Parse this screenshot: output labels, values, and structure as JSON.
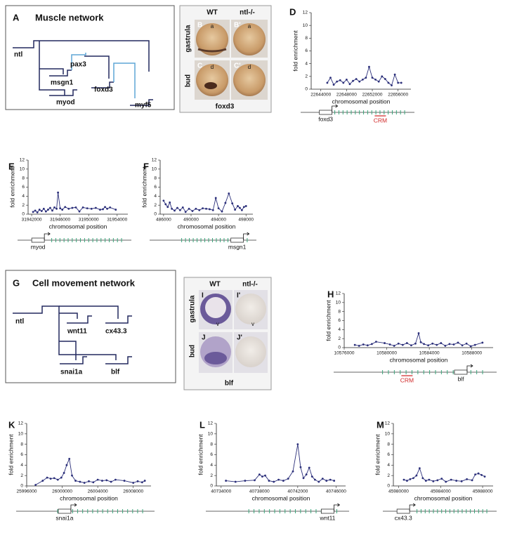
{
  "panel_a": {
    "label": "A",
    "title": "Muscle network",
    "nodes": [
      "ntl",
      "msgn1",
      "pax3",
      "foxd3",
      "myod",
      "myf5"
    ]
  },
  "panel_bc": {
    "columns": [
      "WT",
      "ntl-/-"
    ],
    "rows": [
      "gastrula",
      "bud"
    ],
    "panels": [
      "B",
      "B'",
      "C",
      "C'"
    ],
    "annotations": [
      "a",
      "a",
      "d",
      "d"
    ],
    "gene": "foxd3"
  },
  "panel_g": {
    "label": "G",
    "title": "Cell movement network",
    "nodes": [
      "ntl",
      "wnt11",
      "cx43.3",
      "snai1a",
      "blf"
    ]
  },
  "panel_ij": {
    "columns": [
      "WT",
      "ntl-/-"
    ],
    "rows": [
      "gastrula",
      "bud"
    ],
    "panels": [
      "I",
      "I'",
      "J",
      "J'"
    ],
    "annotations": [
      "v",
      "v"
    ],
    "gene": "blf"
  },
  "chart_data": [
    {
      "type": "line",
      "panel_label": "D",
      "ylabel": "fold enrichment",
      "xlabel": "chromosomal position",
      "color": "#2b2f7a",
      "x": [
        22645000,
        22645500,
        22646000,
        22646500,
        22647000,
        22647500,
        22648000,
        22648500,
        22649000,
        22649500,
        22650000,
        22650500,
        22651000,
        22651500,
        22652000,
        22652500,
        22653000,
        22653500,
        22654000,
        22654500,
        22655000,
        22655500,
        22656000,
        22656500
      ],
      "values": [
        1.0,
        1.8,
        0.7,
        1.2,
        1.4,
        1.0,
        1.5,
        0.8,
        1.3,
        1.6,
        1.2,
        1.5,
        1.8,
        3.5,
        1.8,
        1.5,
        1.2,
        2.0,
        1.6,
        1.0,
        0.6,
        2.3,
        1.0,
        1.0
      ],
      "xlim": [
        22642500,
        22658000
      ],
      "ylim": [
        0,
        12
      ],
      "xticks": [
        22644000,
        22648000,
        22652000,
        22656000
      ],
      "yticks": [
        0,
        2,
        4,
        6,
        8,
        10,
        12
      ],
      "gene_label": "foxd3",
      "crm_label": "CRM"
    },
    {
      "type": "line",
      "panel_label": "E",
      "ylabel": "fold enrichment",
      "xlabel": "chromosomal position",
      "color": "#2b2f7a",
      "x": [
        31942200,
        31942500,
        31942800,
        31943100,
        31943400,
        31943700,
        31944000,
        31944300,
        31944600,
        31944900,
        31945200,
        31945500,
        31945700,
        31946000,
        31946300,
        31946700,
        31947200,
        31947700,
        31948200,
        31948700,
        31949200,
        31949800,
        31950400,
        31951000,
        31951600,
        31952000,
        31952300,
        31952600,
        31953000,
        31953800
      ],
      "values": [
        0.5,
        0.8,
        0.4,
        1.0,
        0.7,
        1.2,
        0.6,
        1.0,
        1.4,
        0.8,
        1.5,
        1.2,
        4.8,
        1.3,
        1.0,
        1.6,
        1.2,
        1.4,
        1.5,
        0.6,
        1.5,
        1.3,
        1.2,
        1.4,
        1.0,
        1.1,
        1.6,
        1.2,
        1.5,
        1.0
      ],
      "xlim": [
        31941500,
        31955500
      ],
      "ylim": [
        0,
        12
      ],
      "xticks": [
        31942000,
        31946000,
        31950000,
        31954000
      ],
      "yticks": [
        0,
        2,
        4,
        6,
        8,
        10,
        12
      ],
      "gene_label": "myod"
    },
    {
      "type": "line",
      "panel_label": "F",
      "ylabel": "fold enrichment",
      "xlabel": "chromosomal position",
      "color": "#2b2f7a",
      "x": [
        486000,
        486300,
        486600,
        486900,
        487200,
        487600,
        488000,
        488400,
        488800,
        489200,
        489700,
        490200,
        490700,
        491200,
        491700,
        492200,
        492700,
        493200,
        493600,
        494000,
        494500,
        495000,
        495500,
        496000,
        496400,
        496800,
        497100,
        497400,
        497700,
        498000
      ],
      "values": [
        3.0,
        2.2,
        1.6,
        2.6,
        1.2,
        0.8,
        1.4,
        0.9,
        1.5,
        0.5,
        1.2,
        0.7,
        1.2,
        0.9,
        1.3,
        1.2,
        1.1,
        0.9,
        3.6,
        1.3,
        0.6,
        2.5,
        4.6,
        2.4,
        1.0,
        1.8,
        1.4,
        0.9,
        1.6,
        1.8
      ],
      "xlim": [
        485500,
        499000
      ],
      "ylim": [
        0,
        12
      ],
      "xticks": [
        486000,
        490000,
        494000,
        498000
      ],
      "yticks": [
        0,
        2,
        4,
        6,
        8,
        10,
        12
      ],
      "gene_label": "msgn1"
    },
    {
      "type": "line",
      "panel_label": "H",
      "ylabel": "fold enrichment",
      "xlabel": "chromosomal position",
      "color": "#2b2f7a",
      "x": [
        10577000,
        10577400,
        10577800,
        10578200,
        10578600,
        10579000,
        10579800,
        10580300,
        10580700,
        10581100,
        10581500,
        10581900,
        10582300,
        10582700,
        10583000,
        10583200,
        10583500,
        10583900,
        10584300,
        10584700,
        10585100,
        10585500,
        10585900,
        10586300,
        10586700,
        10587100,
        10587500,
        10587900,
        10588300,
        10589000
      ],
      "values": [
        0.6,
        0.4,
        0.7,
        0.5,
        0.8,
        1.3,
        1.0,
        0.7,
        0.4,
        0.9,
        0.6,
        1.0,
        0.5,
        0.9,
        3.2,
        1.2,
        0.8,
        0.5,
        0.9,
        0.6,
        1.0,
        0.4,
        0.8,
        0.7,
        1.1,
        0.5,
        0.9,
        0.3,
        0.6,
        1.1
      ],
      "xlim": [
        10576000,
        10590000
      ],
      "ylim": [
        0,
        12
      ],
      "xticks": [
        10576000,
        10580000,
        10584000,
        10588000
      ],
      "yticks": [
        0,
        2,
        4,
        6,
        8,
        10,
        12
      ],
      "gene_label": "blf",
      "crm_label": "CRM"
    },
    {
      "type": "line",
      "panel_label": "K",
      "ylabel": "fold enrichment",
      "xlabel": "chromosomal position",
      "color": "#2b2f7a",
      "x": [
        25997000,
        25997800,
        25998300,
        25998700,
        25999100,
        25999500,
        25999900,
        26000200,
        26000500,
        26000800,
        26001100,
        26001500,
        26002000,
        26002500,
        26003000,
        26003500,
        26004000,
        26004500,
        26005000,
        26005500,
        26006000,
        26007000,
        26008000,
        26008500,
        26009000,
        26009300
      ],
      "values": [
        0.2,
        1.0,
        1.6,
        1.4,
        1.5,
        1.2,
        1.6,
        2.5,
        4.0,
        5.2,
        2.0,
        1.0,
        0.8,
        0.6,
        0.9,
        0.7,
        1.2,
        1.0,
        1.1,
        0.8,
        1.2,
        1.0,
        0.6,
        0.9,
        0.7,
        1.0
      ],
      "xlim": [
        25996000,
        26010000
      ],
      "ylim": [
        0,
        12
      ],
      "xticks": [
        25996000,
        26000000,
        26004000,
        26008000
      ],
      "yticks": [
        0,
        2,
        4,
        6,
        8,
        10,
        12
      ],
      "gene_label": "snai1a"
    },
    {
      "type": "line",
      "panel_label": "L",
      "ylabel": "fold enrichment",
      "xlabel": "chromosomal position",
      "color": "#2b2f7a",
      "x": [
        40734500,
        40735500,
        40736500,
        40737500,
        40738000,
        40738300,
        40738600,
        40739000,
        40739500,
        40740000,
        40740500,
        40741000,
        40741500,
        40742000,
        40742300,
        40742600,
        40742900,
        40743200,
        40743500,
        40743800,
        40744200,
        40744600,
        40745000,
        40745400,
        40745800
      ],
      "values": [
        1.0,
        0.8,
        1.0,
        1.1,
        2.2,
        1.8,
        2.0,
        1.0,
        0.8,
        1.2,
        1.0,
        1.4,
        2.8,
        8.0,
        3.6,
        1.5,
        2.2,
        3.5,
        1.8,
        1.2,
        0.8,
        1.4,
        1.0,
        1.2,
        1.0
      ],
      "xlim": [
        40733500,
        40747000
      ],
      "ylim": [
        0,
        12
      ],
      "xticks": [
        40734000,
        40738000,
        40742000,
        40746000
      ],
      "yticks": [
        0,
        2,
        4,
        6,
        8,
        10,
        12
      ],
      "gene_label": "wnt11"
    },
    {
      "type": "line",
      "panel_label": "M",
      "ylabel": "fold enrichment",
      "xlabel": "chromosomal position",
      "color": "#2b2f7a",
      "x": [
        45980500,
        45980800,
        45981100,
        45981400,
        45981700,
        45982000,
        45982300,
        45982600,
        45982900,
        45983300,
        45983700,
        45984100,
        45984500,
        45985000,
        45985500,
        45986000,
        45986500,
        45987000,
        45987300,
        45987600,
        45987900,
        45988200
      ],
      "values": [
        1.2,
        1.0,
        1.3,
        1.5,
        2.0,
        3.4,
        1.5,
        1.0,
        1.2,
        0.9,
        1.1,
        1.4,
        0.8,
        1.2,
        1.0,
        0.9,
        1.3,
        1.1,
        2.2,
        2.4,
        2.1,
        1.8
      ],
      "xlim": [
        45979500,
        45989000
      ],
      "ylim": [
        0,
        12
      ],
      "xticks": [
        45980000,
        45984000,
        45988000
      ],
      "yticks": [
        0,
        2,
        4,
        6,
        8,
        10,
        12
      ],
      "gene_label": "cx43.3"
    }
  ]
}
